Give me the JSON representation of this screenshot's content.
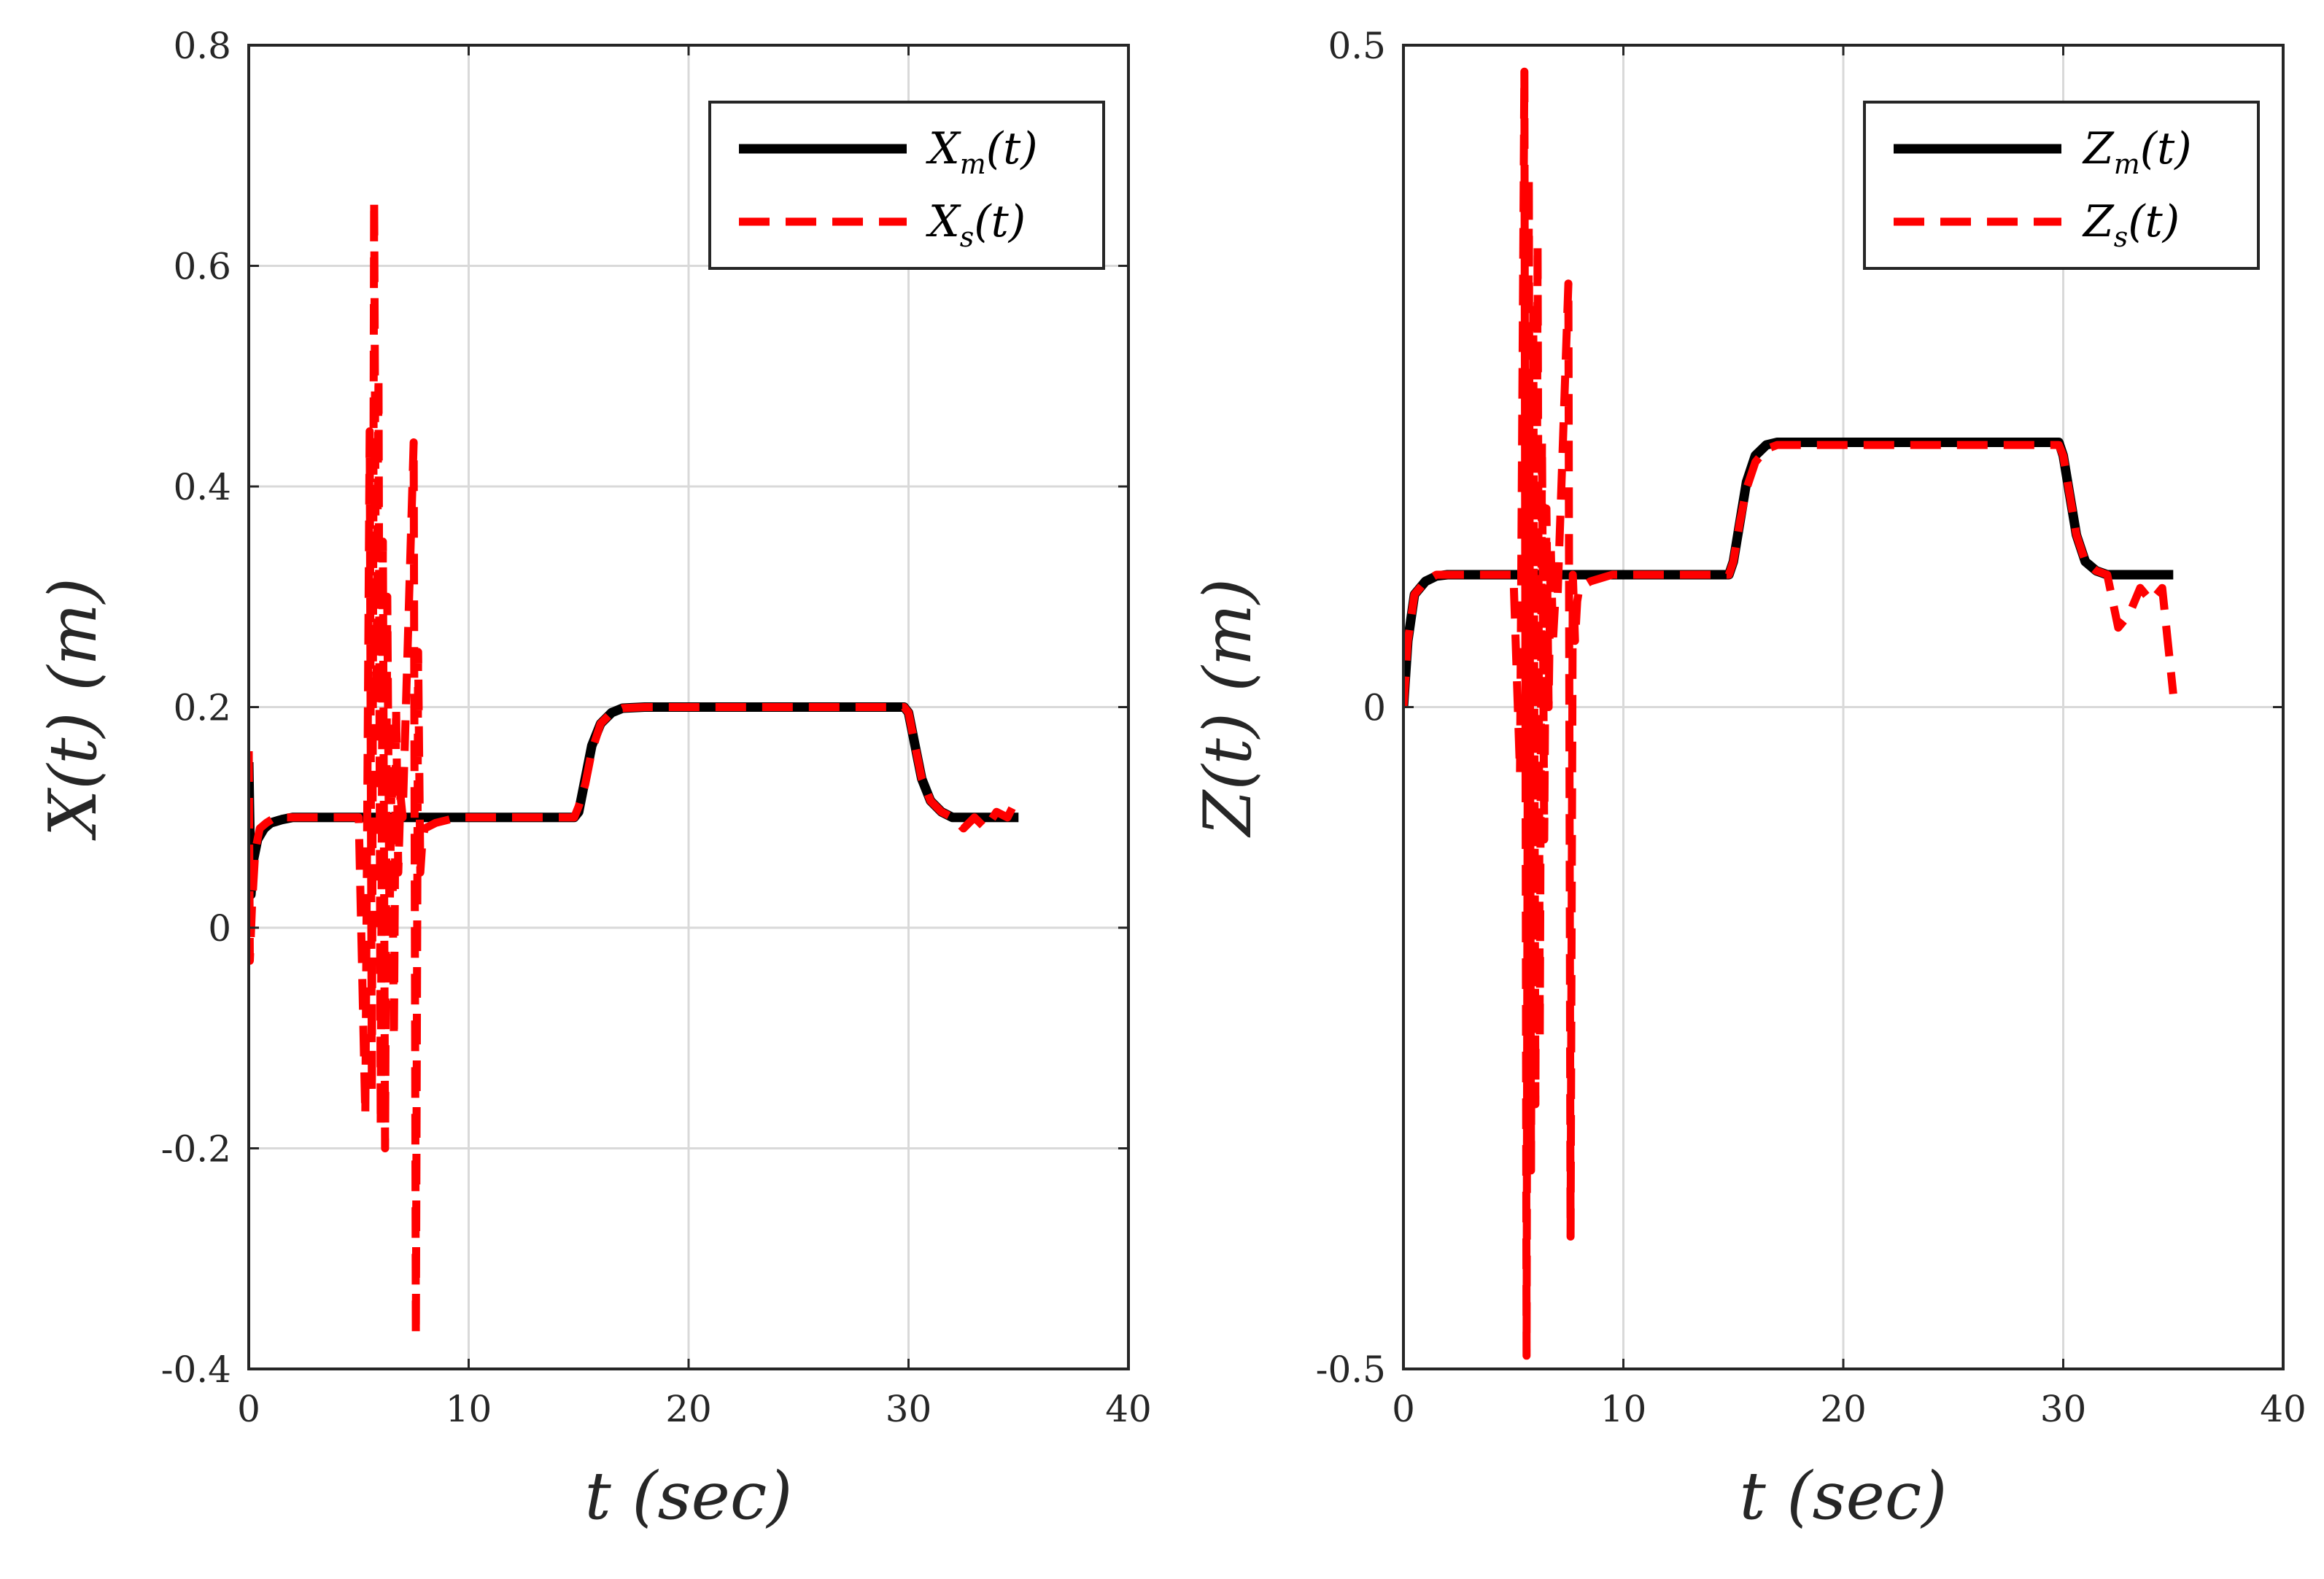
{
  "colors": {
    "master": "#000000",
    "slave": "#ff0000",
    "grid": "#d9d9d9",
    "axis": "#262626",
    "background": "#ffffff"
  },
  "chart_data": [
    {
      "type": "line",
      "xlabel": "t (sec)",
      "ylabel": "X(t) (m)",
      "xlim": [
        0,
        40
      ],
      "ylim": [
        -0.4,
        0.8
      ],
      "xticks": [
        0,
        10,
        20,
        30,
        40
      ],
      "yticks": [
        -0.4,
        -0.2,
        0,
        0.2,
        0.4,
        0.6,
        0.8
      ],
      "xtick_labels": [
        "0",
        "10",
        "20",
        "30",
        "40"
      ],
      "ytick_labels": [
        "-0.4",
        "-0.2",
        "0",
        "0.2",
        "0.4",
        "0.6",
        "0.8"
      ],
      "grid": true,
      "legend_position": "top-right",
      "legend": [
        {
          "base": "X",
          "sub": "m",
          "suffix": "(t)",
          "style": "solid"
        },
        {
          "base": "X",
          "sub": "s",
          "suffix": "(t)",
          "style": "dashed"
        }
      ],
      "series": [
        {
          "name": "X_m(t)",
          "x": [
            0,
            0.1,
            0.2,
            0.4,
            0.7,
            1.0,
            1.5,
            2.0,
            3,
            5,
            8,
            10,
            14.8,
            15.0,
            15.3,
            15.6,
            16.0,
            16.5,
            17.0,
            18,
            20,
            25,
            29.8,
            30.0,
            30.3,
            30.6,
            31.0,
            31.5,
            32.0,
            33,
            35
          ],
          "values": [
            0.15,
            0.03,
            0.06,
            0.08,
            0.09,
            0.095,
            0.098,
            0.1,
            0.1,
            0.1,
            0.1,
            0.1,
            0.1,
            0.105,
            0.135,
            0.165,
            0.185,
            0.195,
            0.199,
            0.2,
            0.2,
            0.2,
            0.2,
            0.195,
            0.165,
            0.135,
            0.115,
            0.105,
            0.1,
            0.1,
            0.1
          ]
        },
        {
          "name": "X_s(t)",
          "x": [
            0,
            0.05,
            0.15,
            0.3,
            0.5,
            0.8,
            1.2,
            2.0,
            3.5,
            5.0,
            5.3,
            5.5,
            5.6,
            5.7,
            5.8,
            5.9,
            6.0,
            6.1,
            6.2,
            6.3,
            6.4,
            6.5,
            6.6,
            6.7,
            6.8,
            6.9,
            7.0,
            7.5,
            7.6,
            7.7,
            7.8,
            7.9,
            8.0,
            8.5,
            9.5,
            11,
            13,
            14.8,
            15.0,
            15.3,
            15.6,
            16.0,
            16.5,
            17.0,
            18,
            20,
            22,
            24,
            26,
            28,
            29.8,
            30.0,
            30.3,
            30.6,
            31.0,
            31.5,
            32.0,
            32.5,
            33.0,
            33.5,
            34.0,
            34.5,
            35.0
          ],
          "values": [
            0.16,
            -0.03,
            0.02,
            0.07,
            0.09,
            0.095,
            0.1,
            0.1,
            0.1,
            0.1,
            -0.17,
            0.45,
            -0.15,
            0.66,
            0.2,
            0.5,
            -0.18,
            0.35,
            -0.2,
            0.3,
            0.0,
            0.15,
            -0.1,
            0.2,
            0.05,
            0.12,
            0.1,
            0.44,
            -0.37,
            0.25,
            0.05,
            0.08,
            0.09,
            0.095,
            0.1,
            0.1,
            0.1,
            0.1,
            0.11,
            0.13,
            0.16,
            0.185,
            0.195,
            0.199,
            0.2,
            0.2,
            0.2,
            0.2,
            0.2,
            0.2,
            0.2,
            0.195,
            0.165,
            0.135,
            0.115,
            0.105,
            0.1,
            0.09,
            0.1,
            0.09,
            0.105,
            0.1,
            0.12
          ]
        }
      ]
    },
    {
      "type": "line",
      "xlabel": "t (sec)",
      "ylabel": "Z(t) (m)",
      "xlim": [
        0,
        40
      ],
      "ylim": [
        -0.5,
        0.5
      ],
      "xticks": [
        0,
        10,
        20,
        30,
        40
      ],
      "yticks": [
        -0.5,
        0,
        0.5
      ],
      "xtick_labels": [
        "0",
        "10",
        "20",
        "30",
        "40"
      ],
      "ytick_labels": [
        "-0.5",
        "0",
        "0.5"
      ],
      "grid": true,
      "legend_position": "top-right",
      "legend": [
        {
          "base": "Z",
          "sub": "m",
          "suffix": "(t)",
          "style": "solid"
        },
        {
          "base": "Z",
          "sub": "s",
          "suffix": "(t)",
          "style": "dashed"
        }
      ],
      "series": [
        {
          "name": "Z_m(t)",
          "x": [
            0,
            0.2,
            0.5,
            1.0,
            1.5,
            2.0,
            3,
            5,
            10,
            14.8,
            15.0,
            15.3,
            15.6,
            16.0,
            16.5,
            17.0,
            18,
            20,
            25,
            29.8,
            30.0,
            30.3,
            30.6,
            31.0,
            31.5,
            32.0,
            33,
            35
          ],
          "values": [
            0.0,
            0.05,
            0.085,
            0.095,
            0.099,
            0.1,
            0.1,
            0.1,
            0.1,
            0.1,
            0.11,
            0.14,
            0.17,
            0.19,
            0.198,
            0.2,
            0.2,
            0.2,
            0.2,
            0.2,
            0.19,
            0.16,
            0.13,
            0.11,
            0.103,
            0.1,
            0.1,
            0.1
          ]
        },
        {
          "name": "Z_s(t)",
          "x": [
            0,
            0.2,
            0.5,
            1.0,
            1.5,
            2.0,
            3.5,
            5.0,
            5.3,
            5.5,
            5.6,
            5.7,
            5.8,
            5.9,
            6.0,
            6.1,
            6.2,
            6.3,
            6.4,
            6.5,
            6.6,
            6.7,
            6.8,
            6.9,
            7.0,
            7.5,
            7.6,
            7.7,
            7.8,
            7.9,
            8.0,
            8.5,
            9.5,
            11,
            13,
            14.8,
            15.0,
            15.3,
            15.6,
            16.0,
            16.5,
            17.0,
            18,
            20,
            22,
            24,
            26,
            28,
            29.8,
            30.0,
            30.3,
            30.6,
            31.0,
            31.5,
            32.0,
            32.5,
            33.0,
            33.5,
            34.0,
            34.5,
            35.0
          ],
          "values": [
            0.0,
            0.05,
            0.085,
            0.095,
            0.1,
            0.1,
            0.1,
            0.1,
            -0.05,
            0.48,
            -0.49,
            0.4,
            -0.35,
            0.3,
            -0.3,
            0.35,
            -0.25,
            0.2,
            -0.1,
            0.15,
            0.0,
            0.12,
            0.05,
            0.08,
            0.08,
            0.32,
            -0.4,
            0.1,
            0.05,
            0.08,
            0.09,
            0.095,
            0.1,
            0.1,
            0.1,
            0.1,
            0.11,
            0.14,
            0.165,
            0.185,
            0.195,
            0.198,
            0.198,
            0.198,
            0.198,
            0.198,
            0.198,
            0.198,
            0.198,
            0.19,
            0.16,
            0.13,
            0.11,
            0.103,
            0.1,
            0.06,
            0.07,
            0.09,
            0.08,
            0.09,
            0.01
          ]
        }
      ]
    }
  ]
}
